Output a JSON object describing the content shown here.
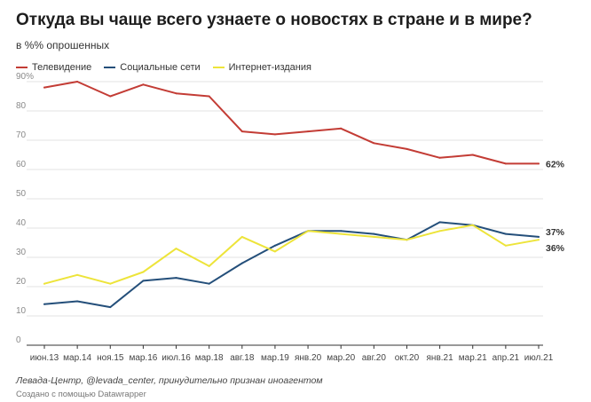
{
  "chart_data": {
    "type": "line",
    "title": "Откуда вы чаще всего узнаете о новостях в стране и в мире?",
    "subtitle": "в %% опрошенных",
    "categories": [
      "июн.13",
      "мар.14",
      "ноя.15",
      "мар.16",
      "июл.16",
      "мар.18",
      "авг.18",
      "мар.19",
      "янв.20",
      "мар.20",
      "авг.20",
      "окт.20",
      "янв.21",
      "мар.21",
      "апр.21",
      "июл.21"
    ],
    "series": [
      {
        "name": "Телевидение",
        "color": "#c33c35",
        "values": [
          88,
          90,
          85,
          89,
          86,
          85,
          73,
          72,
          73,
          74,
          69,
          67,
          64,
          65,
          62,
          62
        ],
        "end_label": "62%"
      },
      {
        "name": "Социальные сети",
        "color": "#244f7a",
        "values": [
          14,
          15,
          13,
          22,
          23,
          21,
          28,
          34,
          39,
          39,
          38,
          36,
          42,
          41,
          38,
          37
        ],
        "end_label": "37%"
      },
      {
        "name": "Интернет-издания",
        "color": "#ede43a",
        "values": [
          21,
          24,
          21,
          25,
          33,
          27,
          37,
          32,
          39,
          38,
          37,
          36,
          39,
          41,
          34,
          36
        ],
        "end_label": "36%"
      }
    ],
    "ylim": [
      0,
      90
    ],
    "yticks": [
      0,
      10,
      20,
      30,
      40,
      50,
      60,
      70,
      80,
      90
    ],
    "ytick_labels": [
      "0",
      "10",
      "20",
      "30",
      "40",
      "50",
      "60",
      "70",
      "80",
      "90%"
    ],
    "grid": true,
    "legend_position": "top-left"
  },
  "footer": {
    "source": "Левада-Центр, @levada_center, принудительно признан иноагентом",
    "credit": "Создано с помощью Datawrapper"
  }
}
